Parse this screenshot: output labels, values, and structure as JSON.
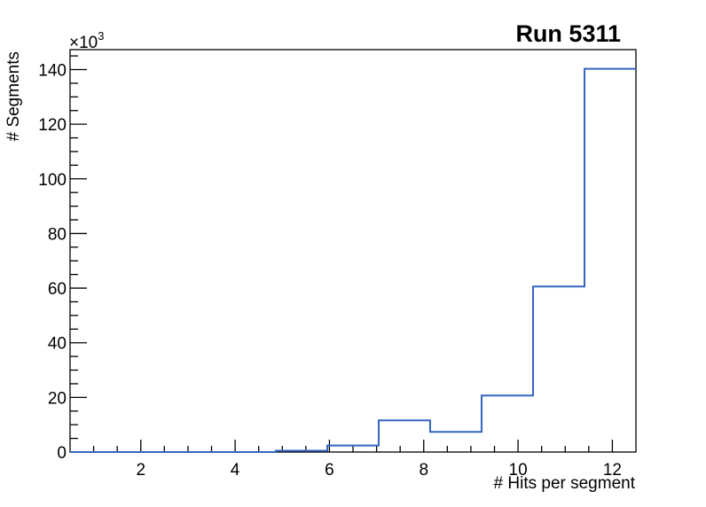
{
  "chart_data": {
    "type": "line",
    "style": "histogram-step",
    "title": "Run 5311",
    "xlabel": "# Hits per segment",
    "ylabel": "# Segments",
    "y_axis_multiplier": {
      "base": "×10",
      "exponent": "3"
    },
    "xlim": [
      0.5,
      12.5
    ],
    "ylim": [
      0,
      147300
    ],
    "bin_edges": [
      0.5,
      1.591,
      2.682,
      3.773,
      4.864,
      5.955,
      7.045,
      8.136,
      9.227,
      10.318,
      11.409,
      12.5
    ],
    "counts": [
      0,
      0,
      0,
      0,
      500,
      2400,
      11600,
      7400,
      20700,
      60600,
      140300
    ],
    "x_major_ticks": [
      {
        "value": 2,
        "label": "2"
      },
      {
        "value": 4,
        "label": "4"
      },
      {
        "value": 6,
        "label": "6"
      },
      {
        "value": 8,
        "label": "8"
      },
      {
        "value": 10,
        "label": "10"
      },
      {
        "value": 12,
        "label": "12"
      }
    ],
    "x_minor_tick_step": 0.5,
    "y_major_ticks": [
      {
        "value": 0,
        "label": "0"
      },
      {
        "value": 20000,
        "label": "20"
      },
      {
        "value": 40000,
        "label": "40"
      },
      {
        "value": 60000,
        "label": "60"
      },
      {
        "value": 80000,
        "label": "80"
      },
      {
        "value": 100000,
        "label": "100"
      },
      {
        "value": 120000,
        "label": "120"
      },
      {
        "value": 140000,
        "label": "140"
      }
    ],
    "y_minor_tick_step": 5000,
    "grid": false,
    "legend": false,
    "line_color": "#3565bf",
    "axis_color": "#000000",
    "background": "#ffffff"
  }
}
